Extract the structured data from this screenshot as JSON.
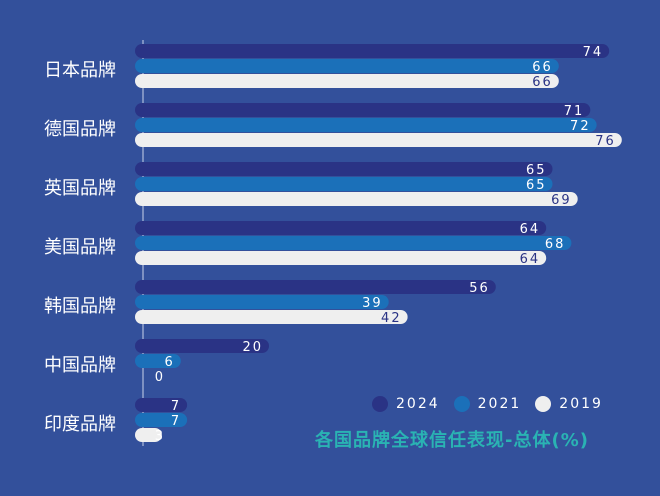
{
  "chart_data": {
    "type": "bar",
    "orientation": "horizontal",
    "title": "各国品牌全球信任表现-总体(%)",
    "categories": [
      "日本品牌",
      "德国品牌",
      "英国品牌",
      "美国品牌",
      "韩国品牌",
      "中国品牌",
      "印度品牌"
    ],
    "series": [
      {
        "name": "2024",
        "color": "#2a3385",
        "label_color": "#ffffff",
        "values": [
          74,
          71,
          65,
          64,
          56,
          20,
          7
        ]
      },
      {
        "name": "2021",
        "color": "#1b70b9",
        "label_color": "#ffffff",
        "values": [
          66,
          72,
          65,
          68,
          39,
          6,
          7
        ]
      },
      {
        "name": "2019",
        "color": "#efefef",
        "label_color": "#2a3385",
        "values": [
          66,
          76,
          69,
          64,
          42,
          0,
          3
        ]
      }
    ],
    "xlim": [
      0,
      76
    ],
    "grid": false,
    "legend": "bottom-right",
    "background": "#33509b",
    "title_color": "#2ab3b3"
  }
}
